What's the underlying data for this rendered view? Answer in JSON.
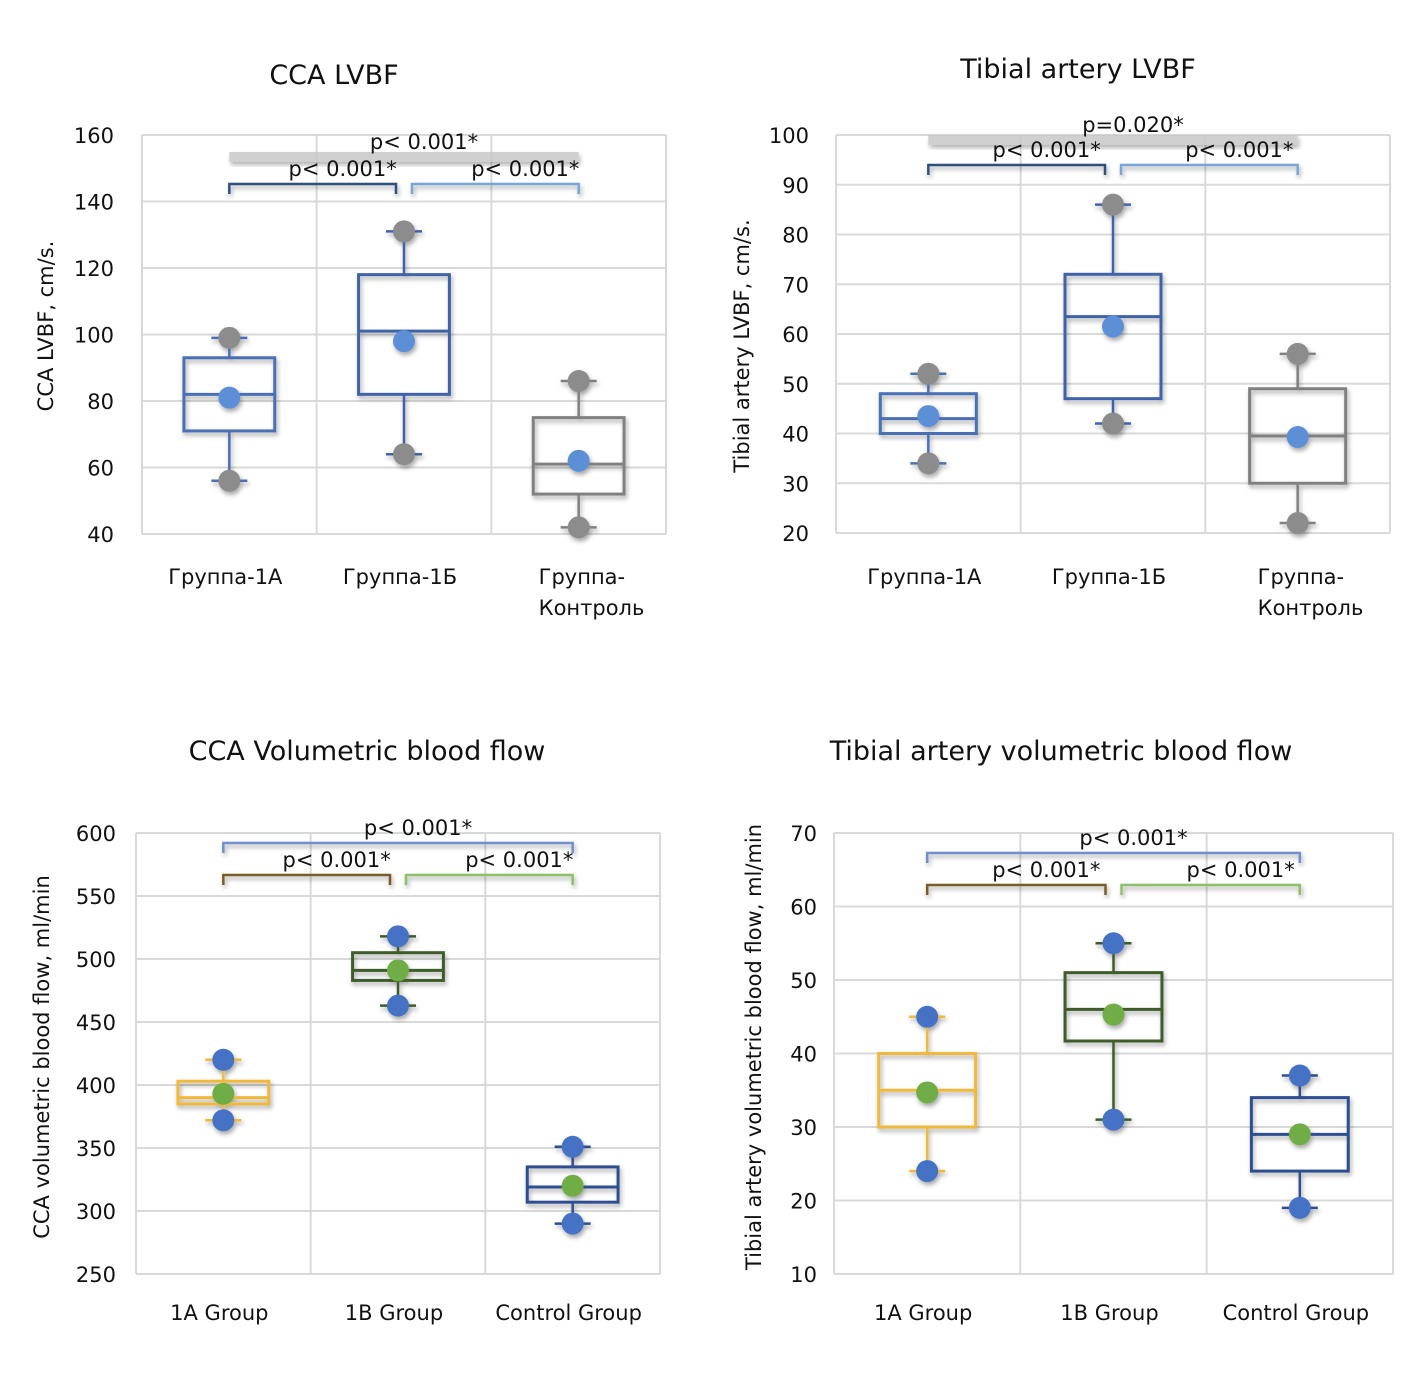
{
  "chart_data": [
    {
      "type": "boxplot",
      "title": "CCA LVBF",
      "ylabel": "CCA LVBF, cm/s.",
      "xlabel": "",
      "ylim": [
        40,
        160
      ],
      "yticks": [
        40,
        60,
        80,
        100,
        120,
        140,
        160
      ],
      "grid": true,
      "categories": [
        [
          "Группа-1А"
        ],
        [
          "Группа-1Б"
        ],
        [
          "Группа-",
          "Контроль"
        ]
      ],
      "series": [
        {
          "name": "Группа-1А",
          "whisker_low": 56,
          "q1": 71,
          "median": 82,
          "q3": 93,
          "whisker_high": 99,
          "mean": 81,
          "box_color": "#4a6fb5",
          "mean_color": "#5b8fd6",
          "whisker_dot_color": "#8c8c8c"
        },
        {
          "name": "Группа-1Б",
          "whisker_low": 64,
          "q1": 82,
          "median": 101,
          "q3": 118,
          "whisker_high": 131,
          "mean": 98,
          "box_color": "#3f64a8",
          "mean_color": "#5b8fd6",
          "whisker_dot_color": "#8c8c8c"
        },
        {
          "name": "Группа-Контроль",
          "whisker_low": 42,
          "q1": 52,
          "median": 61,
          "q3": 75,
          "whisker_high": 86,
          "mean": 62,
          "box_color": "#808080",
          "mean_color": "#5b8fd6",
          "whisker_dot_color": "#8c8c8c"
        }
      ],
      "comparisons": [
        {
          "from": 0,
          "to": 2,
          "label": "p< 0.001*",
          "level": 2,
          "color": "#c8c8c8",
          "style": "bar"
        },
        {
          "from": 0,
          "to": 1,
          "label": "p< 0.001*",
          "level": 1,
          "color": "#2f4f80",
          "style": "bracket"
        },
        {
          "from": 1,
          "to": 2,
          "label": "p< 0.001*",
          "level": 1,
          "color": "#7aa3d8",
          "style": "bracket"
        }
      ]
    },
    {
      "type": "boxplot",
      "title": "Tibial artery LVBF",
      "ylabel": "Tibial artery LVBF, cm/s.",
      "xlabel": "",
      "ylim": [
        20,
        100
      ],
      "yticks": [
        20,
        30,
        40,
        50,
        60,
        70,
        80,
        90,
        100
      ],
      "grid": true,
      "categories": [
        [
          "Группа-1А"
        ],
        [
          "Группа-1Б"
        ],
        [
          "Группа-",
          "Контроль"
        ]
      ],
      "series": [
        {
          "name": "Группа-1А",
          "whisker_low": 34,
          "q1": 40,
          "median": 43,
          "q3": 48,
          "whisker_high": 52,
          "mean": 43.5,
          "box_color": "#4a6fb5",
          "mean_color": "#5b8fd6",
          "whisker_dot_color": "#8c8c8c"
        },
        {
          "name": "Группа-1Б",
          "whisker_low": 42,
          "q1": 47,
          "median": 63.5,
          "q3": 72,
          "whisker_high": 86,
          "mean": 61.5,
          "box_color": "#3f64a8",
          "mean_color": "#5b8fd6",
          "whisker_dot_color": "#8c8c8c"
        },
        {
          "name": "Группа-Контроль",
          "whisker_low": 22,
          "q1": 30,
          "median": 39.5,
          "q3": 49,
          "whisker_high": 56,
          "mean": 39.3,
          "box_color": "#808080",
          "mean_color": "#5b8fd6",
          "whisker_dot_color": "#8c8c8c"
        }
      ],
      "comparisons": [
        {
          "from": 0,
          "to": 2,
          "label": "p=0.020*",
          "level": 2,
          "color": "#c8c8c8",
          "style": "bar"
        },
        {
          "from": 0,
          "to": 1,
          "label": "p< 0.001*",
          "level": 1,
          "color": "#2f4f80",
          "style": "bracket"
        },
        {
          "from": 1,
          "to": 2,
          "label": "p< 0.001*",
          "level": 1,
          "color": "#7aa3d8",
          "style": "bracket"
        }
      ]
    },
    {
      "type": "boxplot",
      "title": "CCA Volumetric blood flow",
      "ylabel": "CCA volumetric blood flow, ml/min",
      "xlabel": "",
      "ylim": [
        250,
        600
      ],
      "yticks": [
        250,
        300,
        350,
        400,
        450,
        500,
        550,
        600
      ],
      "grid": true,
      "categories": [
        [
          "1A Group"
        ],
        [
          "1B Group"
        ],
        [
          "Control Group"
        ]
      ],
      "series": [
        {
          "name": "1A Group",
          "whisker_low": 372,
          "q1": 385,
          "median": 390,
          "q3": 403,
          "whisker_high": 420,
          "mean": 393,
          "box_color": "#f0b93a",
          "mean_color": "#70ad47",
          "whisker_dot_color": "#4472c4"
        },
        {
          "name": "1B Group",
          "whisker_low": 463,
          "q1": 483,
          "median": 491,
          "q3": 505,
          "whisker_high": 518,
          "mean": 491,
          "box_color": "#3d5c2a",
          "mean_color": "#70ad47",
          "whisker_dot_color": "#4472c4"
        },
        {
          "name": "Control Group",
          "whisker_low": 290,
          "q1": 307,
          "median": 319,
          "q3": 335,
          "whisker_high": 351,
          "mean": 320,
          "box_color": "#2f4f8f",
          "mean_color": "#70ad47",
          "whisker_dot_color": "#4472c4"
        }
      ],
      "comparisons": [
        {
          "from": 0,
          "to": 2,
          "label": "p< 0.001*",
          "level": 2,
          "color": "#6f8fcc",
          "style": "bracket"
        },
        {
          "from": 0,
          "to": 1,
          "label": "p< 0.001*",
          "level": 1,
          "color": "#7a5c25",
          "style": "bracket"
        },
        {
          "from": 1,
          "to": 2,
          "label": "p< 0.001*",
          "level": 1,
          "color": "#8cc06a",
          "style": "bracket"
        }
      ]
    },
    {
      "type": "boxplot",
      "title": "Tibial artery volumetric blood flow",
      "ylabel": "Tibial artery volumetric blood flow, ml/min",
      "xlabel": "",
      "ylim": [
        10,
        70
      ],
      "yticks": [
        10,
        20,
        30,
        40,
        50,
        60,
        70
      ],
      "grid": true,
      "categories": [
        [
          "1A Group"
        ],
        [
          "1B Group"
        ],
        [
          "Control Group"
        ]
      ],
      "series": [
        {
          "name": "1A Group",
          "whisker_low": 24,
          "q1": 30,
          "median": 35,
          "q3": 40,
          "whisker_high": 45,
          "mean": 34.7,
          "box_color": "#f0b93a",
          "mean_color": "#70ad47",
          "whisker_dot_color": "#4472c4"
        },
        {
          "name": "1B Group",
          "whisker_low": 31,
          "q1": 41.7,
          "median": 46,
          "q3": 51,
          "whisker_high": 55,
          "mean": 45.3,
          "box_color": "#3d5c2a",
          "mean_color": "#70ad47",
          "whisker_dot_color": "#4472c4"
        },
        {
          "name": "Control Group",
          "whisker_low": 19,
          "q1": 24,
          "median": 29,
          "q3": 34,
          "whisker_high": 37,
          "mean": 29,
          "box_color": "#2f4f8f",
          "mean_color": "#70ad47",
          "whisker_dot_color": "#4472c4"
        }
      ],
      "comparisons": [
        {
          "from": 0,
          "to": 2,
          "label": "p< 0.001*",
          "level": 2,
          "color": "#6f8fcc",
          "style": "bracket"
        },
        {
          "from": 0,
          "to": 1,
          "label": "p< 0.001*",
          "level": 1,
          "color": "#7a5c25",
          "style": "bracket"
        },
        {
          "from": 1,
          "to": 2,
          "label": "p< 0.001*",
          "level": 1,
          "color": "#8cc06a",
          "style": "bracket"
        }
      ]
    }
  ]
}
